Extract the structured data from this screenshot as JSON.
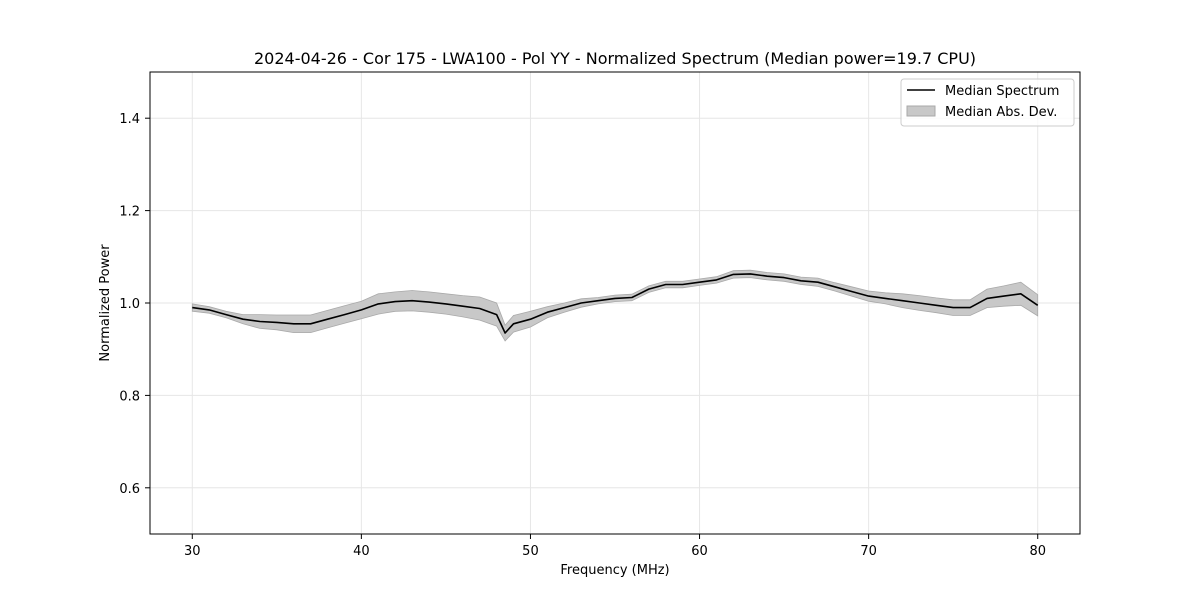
{
  "chart_data": {
    "type": "line",
    "title": "2024-04-26 - Cor 175 - LWA100 - Pol YY - Normalized Spectrum (Median power=19.7 CPU)",
    "xlabel": "Frequency (MHz)",
    "ylabel": "Normalized Power",
    "xlim": [
      27.5,
      82.5
    ],
    "ylim": [
      0.5,
      1.5
    ],
    "xticks": [
      30,
      40,
      50,
      60,
      70,
      80
    ],
    "yticks": [
      0.6,
      0.8,
      1.0,
      1.2,
      1.4
    ],
    "xtick_labels": [
      "30",
      "40",
      "50",
      "60",
      "70",
      "80"
    ],
    "ytick_labels": [
      "0.6",
      "0.8",
      "1.0",
      "1.2",
      "1.4"
    ],
    "grid": true,
    "legend": {
      "placement": "top-right",
      "entries": [
        "Median Spectrum",
        "Median Abs. Dev."
      ]
    },
    "series": [
      {
        "name": "Median Spectrum",
        "x": [
          30,
          31,
          32,
          33,
          34,
          35,
          36,
          37,
          38,
          39,
          40,
          41,
          42,
          43,
          44,
          45,
          46,
          47,
          48,
          48.5,
          49,
          50,
          51,
          52,
          53,
          54,
          55,
          56,
          57,
          58,
          59,
          60,
          61,
          62,
          63,
          64,
          65,
          66,
          67,
          68,
          69,
          70,
          71,
          72,
          73,
          74,
          75,
          76,
          77,
          78,
          79,
          80
        ],
        "values": [
          0.99,
          0.985,
          0.975,
          0.965,
          0.96,
          0.958,
          0.955,
          0.955,
          0.965,
          0.975,
          0.985,
          0.998,
          1.003,
          1.005,
          1.002,
          0.998,
          0.993,
          0.988,
          0.975,
          0.935,
          0.955,
          0.965,
          0.98,
          0.99,
          1.0,
          1.005,
          1.01,
          1.012,
          1.03,
          1.04,
          1.04,
          1.045,
          1.05,
          1.062,
          1.063,
          1.058,
          1.055,
          1.048,
          1.045,
          1.035,
          1.025,
          1.015,
          1.01,
          1.005,
          1.0,
          0.995,
          0.99,
          0.99,
          1.01,
          1.015,
          1.02,
          0.995
        ]
      },
      {
        "name": "Median Abs. Dev.",
        "x": [
          30,
          31,
          32,
          33,
          34,
          35,
          36,
          37,
          38,
          39,
          40,
          41,
          42,
          43,
          44,
          45,
          46,
          47,
          48,
          48.5,
          49,
          50,
          51,
          52,
          53,
          54,
          55,
          56,
          57,
          58,
          59,
          60,
          61,
          62,
          63,
          64,
          65,
          66,
          67,
          68,
          69,
          70,
          71,
          72,
          73,
          74,
          75,
          76,
          77,
          78,
          79,
          80
        ],
        "lower": [
          0.982,
          0.978,
          0.968,
          0.955,
          0.945,
          0.942,
          0.936,
          0.936,
          0.946,
          0.956,
          0.966,
          0.976,
          0.982,
          0.983,
          0.98,
          0.976,
          0.97,
          0.963,
          0.95,
          0.918,
          0.937,
          0.948,
          0.968,
          0.98,
          0.991,
          0.998,
          1.003,
          1.005,
          1.023,
          1.033,
          1.033,
          1.038,
          1.043,
          1.054,
          1.055,
          1.05,
          1.047,
          1.04,
          1.036,
          1.026,
          1.015,
          1.004,
          0.998,
          0.99,
          0.984,
          0.979,
          0.973,
          0.973,
          0.99,
          0.993,
          0.995,
          0.972
        ],
        "upper": [
          0.998,
          0.992,
          0.982,
          0.975,
          0.975,
          0.974,
          0.974,
          0.974,
          0.984,
          0.994,
          1.004,
          1.02,
          1.024,
          1.027,
          1.024,
          1.02,
          1.016,
          1.013,
          1.0,
          0.952,
          0.973,
          0.982,
          0.992,
          1.0,
          1.009,
          1.012,
          1.017,
          1.019,
          1.037,
          1.047,
          1.047,
          1.052,
          1.057,
          1.07,
          1.071,
          1.066,
          1.063,
          1.056,
          1.054,
          1.044,
          1.035,
          1.026,
          1.022,
          1.02,
          1.016,
          1.011,
          1.007,
          1.007,
          1.03,
          1.037,
          1.045,
          1.018
        ]
      }
    ],
    "colors": {
      "line": "#000000",
      "band_fill": "#c8c8c8",
      "band_edge": "#a9a9a9",
      "grid": "#e6e6e6",
      "frame": "#000000",
      "legend_border": "#cccccc"
    }
  }
}
